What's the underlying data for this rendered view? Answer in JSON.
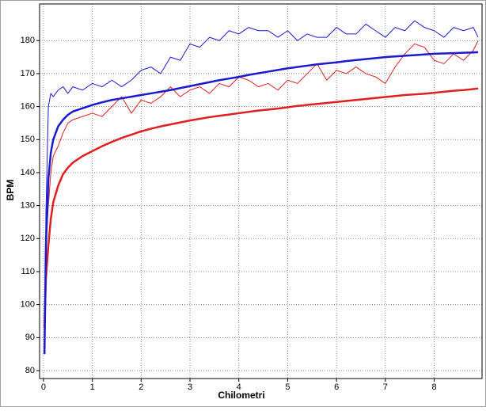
{
  "chart_data": {
    "type": "line",
    "x_label": "Chilometri",
    "y_label": "BPM",
    "x": [
      0.02,
      0.05,
      0.1,
      0.15,
      0.2,
      0.3,
      0.4,
      0.5,
      0.6,
      0.8,
      1.0,
      1.2,
      1.4,
      1.6,
      1.8,
      2.0,
      2.2,
      2.4,
      2.6,
      2.8,
      3.0,
      3.2,
      3.4,
      3.6,
      3.8,
      4.0,
      4.2,
      4.4,
      4.6,
      4.8,
      5.0,
      5.2,
      5.4,
      5.6,
      5.8,
      6.0,
      6.2,
      6.4,
      6.6,
      6.8,
      7.0,
      7.2,
      7.4,
      7.6,
      7.8,
      8.0,
      8.2,
      8.4,
      8.6,
      8.8,
      8.9
    ],
    "series": [
      {
        "color": "#e02020",
        "line_width": 1,
        "values": [
          93,
          118,
          130,
          140,
          145,
          148,
          152,
          155,
          156,
          157,
          158,
          157,
          160,
          163,
          158,
          162,
          161,
          163,
          166,
          163,
          165,
          166,
          164,
          167,
          166,
          169,
          168,
          166,
          167,
          165,
          168,
          167,
          170,
          173,
          168,
          171,
          170,
          172,
          170,
          169,
          167,
          172,
          176,
          179,
          178,
          174,
          173,
          176,
          174,
          177,
          180
        ]
      },
      {
        "color": "#1a1ad0",
        "line_width": 1,
        "values": [
          86,
          128,
          160,
          164,
          163,
          165,
          166,
          164,
          166,
          165,
          167,
          166,
          168,
          166,
          168,
          171,
          172,
          170,
          175,
          174,
          179,
          178,
          181,
          180,
          183,
          182,
          184,
          183,
          183,
          181,
          183,
          180,
          182,
          181,
          181,
          184,
          182,
          182,
          185,
          183,
          181,
          184,
          183,
          186,
          184,
          183,
          181,
          184,
          183,
          184,
          181
        ]
      },
      {
        "color": "#e02020",
        "line_width": 2.5,
        "values": [
          93,
          108,
          118,
          126,
          131,
          136,
          139.5,
          141.5,
          143,
          145,
          146.5,
          148,
          149.3,
          150.5,
          151.5,
          152.5,
          153.3,
          154,
          154.6,
          155.2,
          155.8,
          156.3,
          156.8,
          157.2,
          157.6,
          158,
          158.4,
          158.8,
          159.1,
          159.4,
          159.8,
          160.2,
          160.5,
          160.8,
          161.1,
          161.4,
          161.7,
          162,
          162.3,
          162.6,
          162.9,
          163.2,
          163.5,
          163.7,
          163.9,
          164.2,
          164.5,
          164.8,
          165,
          165.3,
          165.5
        ]
      },
      {
        "color": "#1a1ad0",
        "line_width": 2.5,
        "values": [
          85,
          118,
          138,
          146,
          150,
          154,
          156,
          157.5,
          158.5,
          159.5,
          160.5,
          161.3,
          162,
          162.5,
          163,
          163.5,
          164,
          164.5,
          165,
          165.6,
          166.2,
          166.8,
          167.4,
          168,
          168.5,
          169,
          169.6,
          170.1,
          170.6,
          171.1,
          171.6,
          172,
          172.4,
          172.8,
          173.1,
          173.4,
          173.8,
          174.1,
          174.4,
          174.7,
          175,
          175.2,
          175.4,
          175.6,
          175.8,
          176,
          176.1,
          176.2,
          176.3,
          176.4,
          176.5
        ]
      }
    ],
    "xlim": [
      -0.08,
      8.98
    ],
    "ylim": [
      77.6,
      191.1
    ],
    "xticks": [
      0,
      1,
      2,
      3,
      4,
      5,
      6,
      7,
      8
    ],
    "yticks": [
      80,
      90,
      100,
      110,
      120,
      130,
      140,
      150,
      160,
      170,
      180
    ],
    "grid": true
  }
}
